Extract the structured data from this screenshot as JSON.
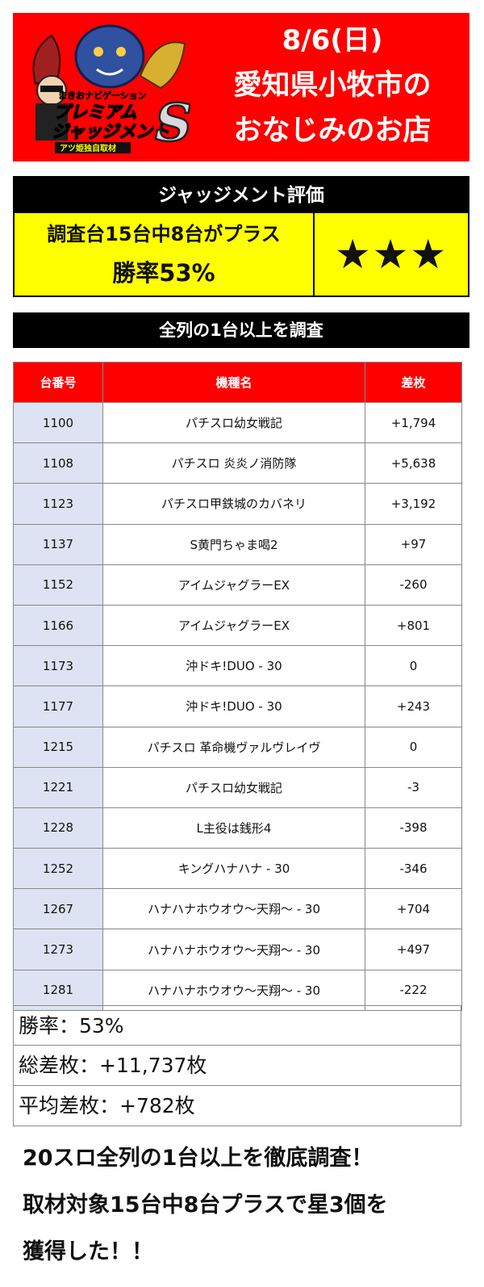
{
  "header": {
    "logo_text": {
      "top": "まきおナビゲーション",
      "main1": "プレミアム",
      "main2": "ジャッジメント",
      "letter": "S",
      "sub": "アツ姫独自取材"
    },
    "date": "8/6(日)",
    "location_line1": "愛知県小牧市の",
    "location_line2": "おなじみのお店"
  },
  "judgment": {
    "title": "ジャッジメント評価",
    "summary_line1": "調査台15台中8台がプラス",
    "summary_line2": "勝率53%",
    "stars": "★★★"
  },
  "survey_bar": "全列の1台以上を調査",
  "table": {
    "headers": [
      "台番号",
      "機種名",
      "差枚"
    ],
    "rows": [
      [
        "1100",
        "パチスロ幼女戦記",
        "+1,794"
      ],
      [
        "1108",
        "パチスロ 炎炎ノ消防隊",
        "+5,638"
      ],
      [
        "1123",
        "パチスロ甲鉄城のカバネリ",
        "+3,192"
      ],
      [
        "1137",
        "S黄門ちゃま喝2",
        "+97"
      ],
      [
        "1152",
        "アイムジャグラーEX",
        "-260"
      ],
      [
        "1166",
        "アイムジャグラーEX",
        "+801"
      ],
      [
        "1173",
        "沖ドキ!DUO - 30",
        "0"
      ],
      [
        "1177",
        "沖ドキ!DUO - 30",
        "+243"
      ],
      [
        "1215",
        "パチスロ 革命機ヴァルヴレイヴ",
        "0"
      ],
      [
        "1221",
        "パチスロ幼女戦記",
        "-3"
      ],
      [
        "1228",
        "L主役は銭形4",
        "-398"
      ],
      [
        "1252",
        "キングハナハナ - 30",
        "-346"
      ],
      [
        "1267",
        "ハナハナホウオウ～天翔～ - 30",
        "+704"
      ],
      [
        "1273",
        "ハナハナホウオウ～天翔～ - 30",
        "+497"
      ],
      [
        "1281",
        "ハナハナホウオウ～天翔～ - 30",
        "-222"
      ]
    ]
  },
  "summary": {
    "win_rate": "勝率：53%",
    "total_diff": "総差枚：+11,737枚",
    "avg_diff": "平均差枚：+782枚"
  },
  "footer": {
    "line1": "20スロ全列の1台以上を徹底調査！",
    "line2": "取材対象15台中8台プラスで星3個を",
    "line3": "獲得した！！"
  },
  "colors": {
    "header_red": "#ff0000",
    "highlight_yellow": "#ffff00",
    "number_cell_blue": "#dde3f2",
    "bar_black": "#000000"
  }
}
